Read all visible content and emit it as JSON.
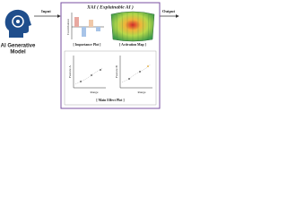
{
  "model": {
    "label_line1": "AI Generative",
    "label_line2": "Model"
  },
  "arrows": {
    "input": "Input",
    "output": "Output"
  },
  "xai": {
    "title": "XAI ( Explainable AI )",
    "importance_plot": {
      "y_label": "Contribution",
      "caption": "[ Importance Plot ]"
    },
    "activation_map": {
      "caption": "[ Activation Map ]"
    },
    "main_effect_plot": {
      "caption": "[ Main Effect Plot ]",
      "left": {
        "y_label": "Feature A",
        "x_label": "Range"
      },
      "right": {
        "y_label": "Feature B",
        "x_label": "Range"
      }
    }
  }
}
